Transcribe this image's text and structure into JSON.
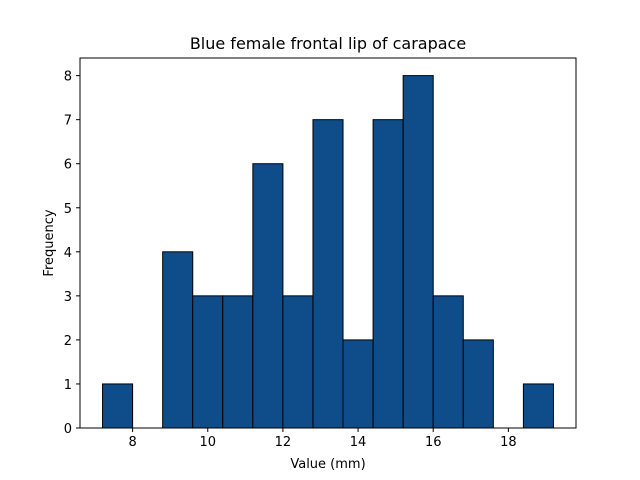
{
  "chart_data": {
    "type": "bar",
    "title": "Blue female frontal lip of carapace",
    "xlabel": "Value (mm)",
    "ylabel": "Frequency",
    "bin_edges": [
      7.2,
      8.0,
      8.8,
      9.6,
      10.4,
      11.2,
      12.0,
      12.8,
      13.6,
      14.4,
      15.2,
      16.0,
      16.8,
      17.6,
      18.4,
      19.2
    ],
    "values": [
      1,
      0,
      4,
      3,
      3,
      6,
      3,
      7,
      2,
      7,
      8,
      3,
      2,
      0,
      1
    ],
    "xlim": [
      6.6,
      19.8
    ],
    "ylim": [
      0,
      8.4
    ],
    "xticks": [
      8,
      10,
      12,
      14,
      16,
      18
    ],
    "yticks": [
      0,
      1,
      2,
      3,
      4,
      5,
      6,
      7,
      8
    ],
    "grid": false,
    "colors": {
      "bar_fill": "#0f4d8a",
      "bar_edge": "#000000"
    }
  }
}
